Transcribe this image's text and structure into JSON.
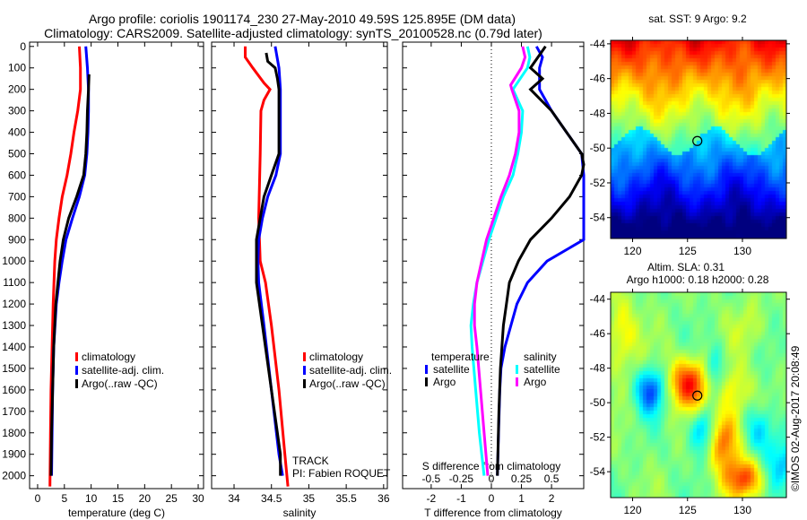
{
  "title": {
    "line1": "Argo profile: coriolis 1901174_230 27-May-2010 49.59S 125.895E (DM data)",
    "line2": "Climatology: CARS2009. Satellite-adjusted climatology: synTS_20100528.nc (0.79d later)"
  },
  "colors": {
    "climatology": "#ff0000",
    "satellite": "#0000ff",
    "argo": "#000000",
    "sal_satellite": "#00ffff",
    "sal_argo": "#ff00ff"
  },
  "chart_data": [
    {
      "type": "line",
      "xlabel": "temperature (deg C)",
      "ylabel": "",
      "xlim": [
        -1.5,
        31
      ],
      "ylim": [
        2060,
        -20
      ],
      "xticks": [
        0,
        5,
        10,
        15,
        20,
        25,
        30
      ],
      "xtick_labels": [
        "0",
        "5",
        "10",
        "15",
        "20",
        "25",
        "30"
      ],
      "yticks": [
        0,
        100,
        200,
        300,
        400,
        500,
        600,
        700,
        800,
        900,
        1000,
        1100,
        1200,
        1300,
        1400,
        1500,
        1600,
        1700,
        1800,
        1900,
        2000
      ],
      "yticks_labels": [
        "0",
        "100",
        "200",
        "300",
        "400",
        "500",
        "600",
        "700",
        "800",
        "900",
        "1000",
        "1100",
        "1200",
        "1300",
        "1400",
        "1500",
        "1600",
        "1700",
        "1800",
        "1900",
        "2000"
      ],
      "legend": [
        "climatology",
        "satellite-adj. clim.",
        "Argo(..raw -QC)"
      ],
      "series": [
        {
          "name": "climatology",
          "color_key": "climatology",
          "depth": [
            0,
            100,
            200,
            300,
            400,
            500,
            600,
            700,
            800,
            900,
            1000,
            1200,
            1400,
            1600,
            1800,
            2050
          ],
          "values": [
            7.8,
            8,
            8,
            7.5,
            6.8,
            6.2,
            5.5,
            4.6,
            4,
            3.5,
            3.2,
            2.9,
            2.7,
            2.5,
            2.4,
            2.3
          ]
        },
        {
          "name": "satellite-adj. clim.",
          "color_key": "satellite",
          "depth": [
            0,
            100,
            200,
            300,
            400,
            500,
            600,
            700,
            800,
            900,
            1000,
            1100,
            1200,
            1400,
            1600,
            1800,
            2000
          ],
          "values": [
            9,
            9.3,
            9.5,
            9.5,
            9.4,
            9.2,
            8.8,
            7.8,
            6.5,
            5.3,
            4.6,
            4,
            3.5,
            3,
            2.8,
            2.7,
            2.6
          ]
        },
        {
          "name": "Argo(..raw -QC)",
          "color_key": "argo",
          "depth": [
            130,
            200,
            300,
            400,
            500,
            600,
            700,
            800,
            900,
            1000,
            1100,
            1200,
            1400,
            1600,
            1800,
            2000
          ],
          "values": [
            9.6,
            9.5,
            9.3,
            9.2,
            9,
            8.6,
            7.3,
            5.8,
            4.8,
            4.2,
            3.8,
            3.4,
            3,
            2.8,
            2.6,
            2.5
          ]
        }
      ]
    },
    {
      "type": "line",
      "xlabel": "salinity",
      "xlim": [
        33.7,
        36.05
      ],
      "ylim": [
        2060,
        -20
      ],
      "xticks": [
        34,
        34.5,
        35,
        35.5,
        36
      ],
      "xtick_labels": [
        "34",
        "34.5",
        "35",
        "35.5",
        "36"
      ],
      "legend": [
        "climatology",
        "satellite-adj. clim.",
        "Argo(..raw -QC)"
      ],
      "annotations": [
        "TRACK",
        "PI: Fabien ROQUET"
      ],
      "series": [
        {
          "name": "climatology",
          "color_key": "climatology",
          "depth": [
            0,
            50,
            100,
            170,
            200,
            250,
            300,
            500,
            800,
            1000,
            1100,
            1300,
            1600,
            1900,
            2050
          ],
          "values": [
            34.15,
            34.15,
            34.25,
            34.4,
            34.48,
            34.4,
            34.36,
            34.35,
            34.33,
            34.35,
            34.42,
            34.5,
            34.6,
            34.68,
            34.72
          ]
        },
        {
          "name": "satellite-adj. clim.",
          "color_key": "satellite",
          "depth": [
            0,
            100,
            200,
            500,
            600,
            700,
            800,
            900,
            1000,
            1100,
            1300,
            1600,
            1900,
            2000
          ],
          "values": [
            34.55,
            34.6,
            34.62,
            34.62,
            34.56,
            34.45,
            34.38,
            34.33,
            34.32,
            34.33,
            34.4,
            34.5,
            34.6,
            34.65
          ]
        },
        {
          "name": "Argo(..raw -QC)",
          "color_key": "argo",
          "depth": [
            30,
            70,
            100,
            150,
            200,
            500,
            600,
            700,
            800,
            900,
            1000,
            1100,
            1300,
            1600,
            1900,
            2000
          ],
          "values": [
            34.43,
            34.45,
            34.55,
            34.58,
            34.6,
            34.6,
            34.5,
            34.4,
            34.35,
            34.3,
            34.3,
            34.3,
            34.38,
            34.5,
            34.62,
            34.62
          ]
        }
      ]
    },
    {
      "type": "line",
      "xlabel": "T difference from climatology",
      "xlabel2": "S difference from climatology",
      "xlim": [
        -2.95,
        3.07
      ],
      "ylim": [
        2060,
        -20
      ],
      "xticks": [
        -2,
        -1,
        0,
        1,
        2
      ],
      "xtick_labels": [
        "-2",
        "-1",
        "0",
        "1",
        "2"
      ],
      "s_xticks": [
        -0.5,
        -0.25,
        0,
        0.25,
        0.5
      ],
      "s_xtick_labels": [
        "-0.5",
        "-0.25",
        "0",
        "0.25",
        "0.5"
      ],
      "legend": {
        "temperature_title": "temperature",
        "salinity_title": "salinity",
        "items": [
          "satellite",
          "Argo",
          "satellite",
          "Argo"
        ]
      },
      "series": [
        {
          "name": "T satellite",
          "color_key": "satellite",
          "unit": "T",
          "depth": [
            0,
            50,
            100,
            200,
            300,
            400,
            500,
            600,
            700,
            800,
            900,
            1000,
            1100,
            1200,
            1300,
            1400,
            1500,
            1600,
            1800,
            2000
          ],
          "values": [
            1.5,
            1.7,
            1.6,
            1.6,
            2.0,
            2.5,
            3.0,
            3.4,
            3.4,
            3.3,
            3.1,
            1.85,
            1.2,
            0.85,
            0.65,
            0.45,
            0.32,
            0.28,
            0.24,
            0.2
          ]
        },
        {
          "name": "T Argo",
          "color_key": "argo",
          "unit": "T",
          "depth": [
            0,
            100,
            150,
            200,
            300,
            400,
            500,
            550,
            600,
            700,
            800,
            900,
            1000,
            1100,
            1200,
            1300,
            1500,
            1700,
            2000
          ],
          "values": [
            1.8,
            1.3,
            1.7,
            1.3,
            2.0,
            2.5,
            3.0,
            3.1,
            3.0,
            2.6,
            2.0,
            1.3,
            0.9,
            0.6,
            0.5,
            0.4,
            0.3,
            0.25,
            0.2
          ]
        },
        {
          "name": "S satellite",
          "color_key": "sal_satellite",
          "unit": "S",
          "depth": [
            0,
            50,
            100,
            200,
            300,
            400,
            500,
            600,
            700,
            800,
            900,
            1000,
            1100,
            1200,
            1300,
            1400,
            1600,
            1800,
            2000
          ],
          "values": [
            0.3,
            0.32,
            0.3,
            0.18,
            0.26,
            0.25,
            0.22,
            0.18,
            0.1,
            0.04,
            -0.02,
            -0.07,
            -0.12,
            -0.15,
            -0.17,
            -0.16,
            -0.13,
            -0.1,
            -0.06
          ]
        },
        {
          "name": "S Argo",
          "color_key": "sal_argo",
          "unit": "S",
          "depth": [
            0,
            50,
            100,
            180,
            200,
            300,
            400,
            500,
            600,
            700,
            800,
            900,
            1000,
            1100,
            1200,
            1300,
            1400,
            1600,
            1800,
            2000
          ],
          "values": [
            0.26,
            0.28,
            0.25,
            0.16,
            0.17,
            0.23,
            0.23,
            0.2,
            0.15,
            0.08,
            0.02,
            -0.04,
            -0.08,
            -0.12,
            -0.14,
            -0.14,
            -0.12,
            -0.09,
            -0.06,
            -0.03
          ]
        }
      ]
    },
    {
      "type": "heatmap",
      "title": "sat. SST: 9 Argo: 9.2",
      "xlim": [
        118,
        134
      ],
      "ylim": [
        -55.2,
        -43.8
      ],
      "xticks": [
        120,
        125,
        130
      ],
      "xtick_labels": [
        "120",
        "125",
        "130"
      ],
      "yticks": [
        -44,
        -46,
        -48,
        -50,
        -52,
        -54
      ],
      "ytick_labels": [
        "-44",
        "-46",
        "-48",
        "-50",
        "-52",
        "-54"
      ],
      "marker": {
        "lon": 125.895,
        "lat": -49.59
      }
    },
    {
      "type": "heatmap",
      "title": "Altim. SLA: 0.31",
      "subtitle": "Argo h1000: 0.18 h2000: 0.28",
      "xlim": [
        118,
        134
      ],
      "ylim": [
        -55.5,
        -43.6
      ],
      "xticks": [
        120,
        125,
        130
      ],
      "xtick_labels": [
        "120",
        "125",
        "130"
      ],
      "yticks": [
        -44,
        -46,
        -48,
        -50,
        -52,
        -54
      ],
      "ytick_labels": [
        "-44",
        "-46",
        "-48",
        "-50",
        "-52",
        "-54"
      ],
      "marker": {
        "lon": 125.895,
        "lat": -49.59
      }
    }
  ],
  "credit": "©IMOS 02-Aug-2017 20:08:49"
}
